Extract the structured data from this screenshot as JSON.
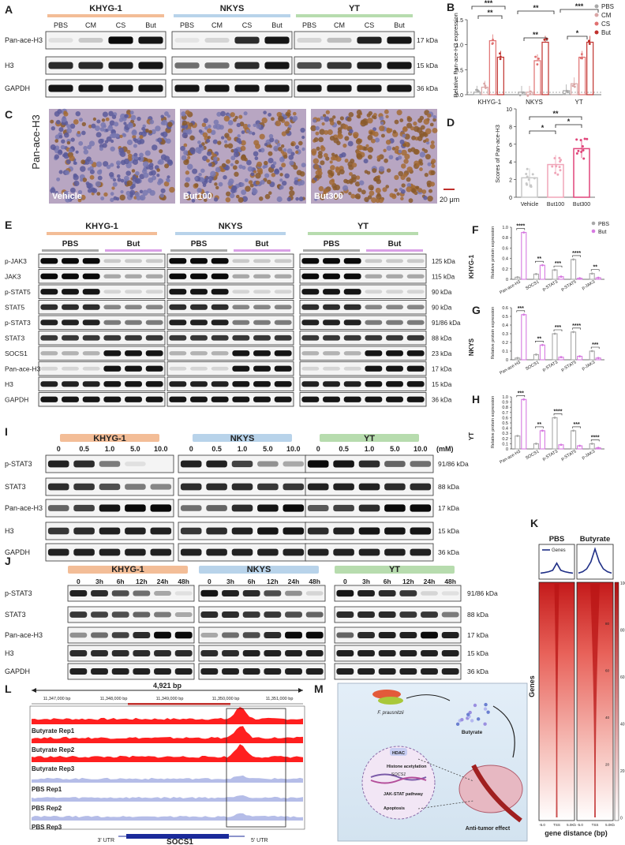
{
  "panels": {
    "A": {
      "letter": "A",
      "groups": [
        "KHYG-1",
        "NKYS",
        "YT"
      ],
      "lanes": [
        "PBS",
        "CM",
        "CS",
        "But"
      ],
      "rows": [
        "Pan-ace-H3",
        "H3",
        "GAPDH"
      ],
      "kda": [
        "17 kDa",
        "15 kDa",
        "36 kDa"
      ]
    },
    "B": {
      "letter": "B",
      "sig": [
        "***",
        "**",
        "**",
        "**",
        "***",
        "*"
      ]
    },
    "C": {
      "letter": "C",
      "ylabel": "Pan-ace-H3",
      "images": [
        "Vehicle",
        "But100",
        "But300"
      ],
      "scalebar": "20 μm"
    },
    "D": {
      "letter": "D",
      "sig": [
        "**",
        "*",
        "*"
      ]
    },
    "E": {
      "letter": "E",
      "groups": [
        "KHYG-1",
        "NKYS",
        "YT"
      ],
      "conds": [
        "PBS",
        "But"
      ],
      "rows": [
        "p-JAK3",
        "JAK3",
        "p-STAT5",
        "STAT5",
        "p-STAT3",
        "STAT3",
        "SOCS1",
        "Pan-ace-H3",
        "H3",
        "GAPDH"
      ],
      "kda": [
        "125 kDa",
        "115 kDa",
        "90 kDa",
        "90 kDa",
        "91/86 kDa",
        "88 kDa",
        "23 kDa",
        "17 kDa",
        "15 kDa",
        "36 kDa"
      ]
    },
    "FGH": {
      "letters": [
        "F",
        "G",
        "H"
      ],
      "cells": [
        "KHYG-1",
        "NKYS",
        "YT"
      ]
    },
    "I": {
      "letter": "I",
      "groups": [
        "KHYG-1",
        "NKYS",
        "YT"
      ],
      "doses": [
        "0",
        "0.5",
        "1.0",
        "5.0",
        "10.0"
      ],
      "unit": "(mM)",
      "rows": [
        "p-STAT3",
        "STAT3",
        "Pan-ace-H3",
        "H3",
        "GAPDH"
      ],
      "kda": [
        "91/86 kDa",
        "88 kDa",
        "17 kDa",
        "15 kDa",
        "36 kDa"
      ]
    },
    "J": {
      "letter": "J",
      "groups": [
        "KHYG-1",
        "NKYS",
        "YT"
      ],
      "times": [
        "0",
        "3h",
        "6h",
        "12h",
        "24h",
        "48h"
      ],
      "rows": [
        "p-STAT3",
        "STAT3",
        "Pan-ace-H3",
        "H3",
        "GAPDH"
      ],
      "kda": [
        "91/86 kDa",
        "88 kDa",
        "17 kDa",
        "15 kDa",
        "36 kDa"
      ]
    },
    "K": {
      "letter": "K",
      "col_titles": [
        "PBS",
        "Butyrate"
      ],
      "legend": "Genes",
      "ylabel": "Genes",
      "xlabel": "gene distance (bp)",
      "colorbar_ticks": [
        "100",
        "80",
        "60",
        "40",
        "20",
        "0"
      ],
      "heat_ticks": [
        "80",
        "60",
        "40",
        "20"
      ]
    },
    "L": {
      "letter": "L",
      "span": "4,921 bp",
      "coords": [
        "11,347,000 bp",
        "11,348,000 bp",
        "11,349,000 bp",
        "11,350,000 bp",
        "11,351,000 bp"
      ],
      "tracks": [
        "Butyrate Rep1",
        "Butyrate Rep2",
        "Butyrate Rep3",
        "PBS Rep1",
        "PBS Rep2",
        "PBS Rep3"
      ],
      "utr3": "3' UTR",
      "utr5": "5' UTR",
      "gene": "SOCS1"
    },
    "M": {
      "letter": "M",
      "bacterium": "F. prausnitzii",
      "metabolite": "Butyrate",
      "items": [
        "HDAC",
        "Histone acetylation",
        "SOCS1",
        "JAK-STAT pathway",
        "Apoptosis"
      ],
      "result": "Anti-tumor effect"
    }
  },
  "chart_data": [
    {
      "type": "bar",
      "panel": "B",
      "ylabel": "Relative Pan-ace-H3 expression",
      "categories": [
        "KHYG-1",
        "NKYS",
        "YT"
      ],
      "ylim": [
        0,
        1.5
      ],
      "yticks": [
        "0.0",
        "0.5",
        "1.0",
        "1.5"
      ],
      "series": [
        {
          "name": "PBS",
          "values": [
            0.05,
            0.05,
            0.08
          ]
        },
        {
          "name": "CM",
          "values": [
            0.15,
            0.05,
            0.22
          ]
        },
        {
          "name": "CS",
          "values": [
            1.08,
            0.68,
            0.75
          ]
        },
        {
          "name": "But",
          "values": [
            0.75,
            1.05,
            1.05
          ]
        }
      ],
      "colors": [
        "#a8a8a8",
        "#d9a6a6",
        "#e07070",
        "#c0302c"
      ]
    },
    {
      "type": "bar",
      "panel": "D",
      "ylabel": "Scores of Pan-ace-H3",
      "categories": [
        "Vehicle",
        "But100",
        "But300"
      ],
      "values": [
        2.2,
        3.7,
        5.5
      ],
      "ylim": [
        0,
        10
      ],
      "yticks": [
        "0",
        "2",
        "4",
        "6",
        "8",
        "10"
      ],
      "colors": [
        "#c8c8c8",
        "#f0a5b8",
        "#e0457a"
      ]
    },
    {
      "type": "bar",
      "panel": "F",
      "ylabel": "Relative protein expression",
      "cell": "KHYG-1",
      "categories": [
        "Pan-ace-H3",
        "SOCS1",
        "p-STAT3",
        "p-STAT5",
        "p-JAK3"
      ],
      "ylim": [
        0,
        1.0
      ],
      "yticks": [
        "0",
        "0.2",
        "0.4",
        "0.6",
        "0.8",
        "1.0"
      ],
      "series": [
        {
          "name": "PBS",
          "values": [
            0.04,
            0.1,
            0.18,
            0.38,
            0.11
          ]
        },
        {
          "name": "But",
          "values": [
            0.9,
            0.27,
            0.05,
            0.02,
            0.03
          ]
        }
      ],
      "sig": [
        "****",
        "**",
        "***",
        "****",
        "**"
      ]
    },
    {
      "type": "bar",
      "panel": "G",
      "ylabel": "Relative protein expression",
      "cell": "NKYS",
      "categories": [
        "Pan-ace-H3",
        "SOCS1",
        "p-STAT3",
        "p-STAT5",
        "p-JAK3"
      ],
      "ylim": [
        0,
        0.6
      ],
      "yticks": [
        "0",
        "0.1",
        "0.2",
        "0.3",
        "0.4",
        "0.5",
        "0.6"
      ],
      "series": [
        {
          "name": "PBS",
          "values": [
            0.02,
            0.06,
            0.3,
            0.32,
            0.1
          ]
        },
        {
          "name": "But",
          "values": [
            0.52,
            0.17,
            0.03,
            0.04,
            0.02
          ]
        }
      ],
      "sig": [
        "***",
        "**",
        "***",
        "****",
        "***"
      ]
    },
    {
      "type": "bar",
      "panel": "H",
      "ylabel": "Relative protein expression",
      "cell": "YT",
      "categories": [
        "Pan-ace-H3",
        "SOCS1",
        "p-STAT3",
        "p-STAT5",
        "p-JAK3"
      ],
      "ylim": [
        0,
        1.0
      ],
      "yticks": [
        "0",
        "0.1",
        "0.2",
        "0.3",
        "0.4",
        "0.5",
        "0.6",
        "0.7",
        "0.8",
        "0.9",
        "1.0"
      ],
      "series": [
        {
          "name": "PBS",
          "values": [
            0.25,
            0.1,
            0.6,
            0.35,
            0.1
          ]
        },
        {
          "name": "But",
          "values": [
            0.95,
            0.35,
            0.08,
            0.06,
            0.02
          ]
        }
      ],
      "sig": [
        "***",
        "**",
        "****",
        "***",
        "****"
      ]
    },
    {
      "type": "line",
      "panel": "K",
      "xticks": [
        "-5.0",
        "TSS",
        "5.0Kb"
      ],
      "series": [
        {
          "name": "PBS",
          "values": [
            0.1,
            0.12,
            0.15,
            0.2,
            0.45,
            0.2,
            0.15,
            0.12,
            0.1
          ]
        },
        {
          "name": "Butyrate",
          "values": [
            0.1,
            0.15,
            0.25,
            0.5,
            0.95,
            0.5,
            0.25,
            0.15,
            0.1
          ]
        }
      ]
    }
  ]
}
